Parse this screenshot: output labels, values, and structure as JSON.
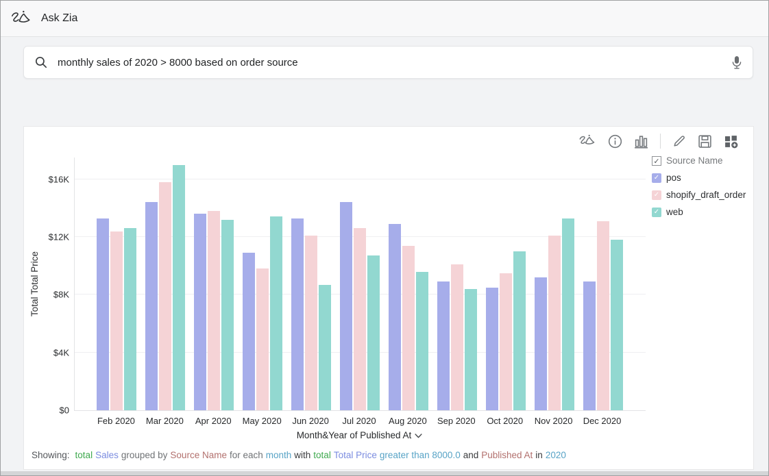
{
  "header": {
    "app_name": "Ask Zia"
  },
  "search": {
    "query": "monthly sales of 2020 > 8000 based on order source",
    "icons": {
      "left": "search-icon",
      "right": "microphone-icon"
    }
  },
  "toolbar": {
    "icons": [
      "zia-icon",
      "info-icon",
      "chart-type-icon",
      "edit-icon",
      "save-icon",
      "add-widget-icon"
    ]
  },
  "legend": {
    "header": {
      "label": "Source Name",
      "checked": true
    },
    "items": [
      {
        "label": "pos",
        "color": "#a6adea",
        "checked": true
      },
      {
        "label": "shopify_draft_order",
        "color": "#f5d3d6",
        "checked": true
      },
      {
        "label": "web",
        "color": "#92d8d0",
        "checked": true
      }
    ]
  },
  "chart_data": {
    "type": "bar",
    "title": "",
    "xlabel": "Month&Year of Published At",
    "ylabel": "Total Total Price",
    "grid": true,
    "legend_position": "right",
    "ylim": [
      0,
      17500
    ],
    "yticks": [
      {
        "label": "$0",
        "value": 0
      },
      {
        "label": "$4K",
        "value": 4000
      },
      {
        "label": "$8K",
        "value": 8000
      },
      {
        "label": "$12K",
        "value": 12000
      },
      {
        "label": "$16K",
        "value": 16000
      }
    ],
    "categories": [
      "Feb 2020",
      "Mar 2020",
      "Apr 2020",
      "May 2020",
      "Jun 2020",
      "Jul 2020",
      "Aug 2020",
      "Sep 2020",
      "Oct 2020",
      "Nov 2020",
      "Dec 2020"
    ],
    "series": [
      {
        "name": "pos",
        "color": "#a6adea",
        "values": [
          13300,
          14400,
          13600,
          10900,
          13300,
          14400,
          12900,
          8900,
          8500,
          9200,
          8900
        ]
      },
      {
        "name": "shopify_draft_order",
        "color": "#f5d3d6",
        "values": [
          12400,
          15800,
          13800,
          9800,
          12100,
          12600,
          11400,
          10100,
          9500,
          12100,
          13100
        ]
      },
      {
        "name": "web",
        "color": "#92d8d0",
        "values": [
          12600,
          17000,
          13200,
          13400,
          8700,
          10700,
          9600,
          8400,
          11000,
          13300,
          11800
        ]
      }
    ]
  },
  "footer": {
    "prefix": "Showing:",
    "segments": [
      {
        "text": "total",
        "color": "#3ea94e"
      },
      {
        "text": "Sales",
        "color": "#7b8ce0"
      },
      {
        "text": "grouped by",
        "color": "#6f7275"
      },
      {
        "text": "Source Name",
        "color": "#b2706d"
      },
      {
        "text": "for each",
        "color": "#6f7275"
      },
      {
        "text": "month",
        "color": "#57a3c6"
      },
      {
        "text": "with",
        "color": "#38393b"
      },
      {
        "text": "total",
        "color": "#3ea94e"
      },
      {
        "text": "Total Price",
        "color": "#7b8ce0"
      },
      {
        "text": "greater than 8000.0",
        "color": "#57a3c6"
      },
      {
        "text": "and",
        "color": "#38393b"
      },
      {
        "text": "Published At",
        "color": "#b2706d"
      },
      {
        "text": "in",
        "color": "#38393b"
      },
      {
        "text": "2020",
        "color": "#57a3c6"
      }
    ]
  }
}
